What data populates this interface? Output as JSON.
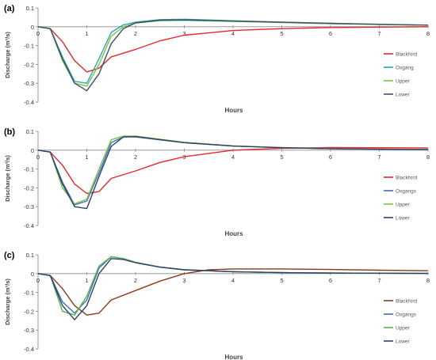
{
  "chart_data": [
    {
      "type": "line",
      "panel_label": "(a)",
      "xlabel": "Hours",
      "ylabel": "Discharge (m³/s)",
      "xlim": [
        0,
        8
      ],
      "ylim": [
        -0.4,
        0.1
      ],
      "x_ticks": [
        "0",
        "1",
        "2",
        "3",
        "4",
        "5",
        "6",
        "7",
        "8"
      ],
      "y_ticks": [
        "0.1",
        "0",
        "-0.1",
        "-0.2",
        "-0.3",
        "-0.4"
      ],
      "grid": false,
      "legend_position": "right",
      "series": [
        {
          "name": "Blackford",
          "color": "#e3262b",
          "x": [
            0,
            0.25,
            0.5,
            0.75,
            1.0,
            1.25,
            1.5,
            2.0,
            2.5,
            3.0,
            4.0,
            5.0,
            6.0,
            7.0,
            8.0
          ],
          "y": [
            0,
            -0.01,
            -0.08,
            -0.18,
            -0.24,
            -0.22,
            -0.16,
            -0.12,
            -0.075,
            -0.045,
            -0.02,
            -0.01,
            -0.004,
            -0.002,
            0
          ]
        },
        {
          "name": "Oxgang",
          "color": "#2aa7b8",
          "x": [
            0,
            0.25,
            0.5,
            0.75,
            1.0,
            1.25,
            1.5,
            1.75,
            2.0,
            2.5,
            3.0,
            4.0,
            5.0,
            6.0,
            7.0,
            8.0
          ],
          "y": [
            0,
            -0.01,
            -0.16,
            -0.29,
            -0.3,
            -0.17,
            -0.03,
            0.01,
            0.025,
            0.038,
            0.04,
            0.032,
            0.025,
            0.018,
            0.012,
            0.008
          ]
        },
        {
          "name": "Upper",
          "color": "#7ec242",
          "x": [
            0,
            0.25,
            0.5,
            0.75,
            1.0,
            1.25,
            1.5,
            1.75,
            2.0,
            2.5,
            3.0,
            4.0,
            5.0,
            6.0,
            7.0,
            8.0
          ],
          "y": [
            0,
            -0.01,
            -0.18,
            -0.3,
            -0.315,
            -0.2,
            -0.05,
            0.0,
            0.02,
            0.032,
            0.034,
            0.028,
            0.022,
            0.016,
            0.012,
            0.008
          ]
        },
        {
          "name": "Lower",
          "color": "#3d5068",
          "x": [
            0,
            0.25,
            0.5,
            0.75,
            1.0,
            1.25,
            1.5,
            1.75,
            2.0,
            2.5,
            3.0,
            4.0,
            5.0,
            6.0,
            7.0,
            8.0
          ],
          "y": [
            0,
            -0.01,
            -0.17,
            -0.3,
            -0.34,
            -0.25,
            -0.09,
            -0.01,
            0.02,
            0.035,
            0.036,
            0.03,
            0.024,
            0.018,
            0.013,
            0.009
          ]
        }
      ]
    },
    {
      "type": "line",
      "panel_label": "(b)",
      "xlabel": "Hours",
      "ylabel": "Discharge (m³/s)",
      "xlim": [
        0,
        8
      ],
      "ylim": [
        -0.4,
        0.1
      ],
      "x_ticks": [
        "0",
        "1",
        "2",
        "3",
        "4",
        "5",
        "6",
        "7",
        "8"
      ],
      "y_ticks": [
        "0.1",
        "0",
        "-0.1",
        "-0.2",
        "-0.3",
        "-0.4"
      ],
      "grid": false,
      "legend_position": "right",
      "series": [
        {
          "name": "Blackford",
          "color": "#e3262b",
          "x": [
            0,
            0.25,
            0.5,
            0.75,
            1.0,
            1.25,
            1.5,
            2.0,
            2.5,
            3.0,
            4.0,
            5.0,
            6.0,
            7.0,
            8.0
          ],
          "y": [
            0,
            -0.01,
            -0.08,
            -0.18,
            -0.23,
            -0.22,
            -0.15,
            -0.11,
            -0.065,
            -0.035,
            0.0,
            0.01,
            0.014,
            0.013,
            0.012
          ]
        },
        {
          "name": "Oxgangs",
          "color": "#3b73b8",
          "x": [
            0,
            0.25,
            0.5,
            0.75,
            1.0,
            1.25,
            1.5,
            1.75,
            2.0,
            2.5,
            3.0,
            4.0,
            5.0,
            6.0,
            7.0,
            8.0
          ],
          "y": [
            0,
            -0.01,
            -0.17,
            -0.29,
            -0.27,
            -0.12,
            0.04,
            0.07,
            0.07,
            0.055,
            0.04,
            0.022,
            0.013,
            0.008,
            0.005,
            0.003
          ]
        },
        {
          "name": "Upper",
          "color": "#7ec242",
          "x": [
            0,
            0.25,
            0.5,
            0.75,
            1.0,
            1.25,
            1.5,
            1.75,
            2.0,
            2.5,
            3.0,
            4.0,
            5.0,
            6.0,
            7.0,
            8.0
          ],
          "y": [
            0,
            -0.01,
            -0.2,
            -0.285,
            -0.26,
            -0.1,
            0.055,
            0.075,
            0.075,
            0.058,
            0.042,
            0.023,
            0.014,
            0.009,
            0.006,
            0.004
          ]
        },
        {
          "name": "Lower",
          "color": "#2f3f6a",
          "x": [
            0,
            0.25,
            0.5,
            0.75,
            1.0,
            1.25,
            1.5,
            1.75,
            2.0,
            2.5,
            3.0,
            4.0,
            5.0,
            6.0,
            7.0,
            8.0
          ],
          "y": [
            0,
            -0.01,
            -0.18,
            -0.3,
            -0.31,
            -0.14,
            0.02,
            0.07,
            0.072,
            0.056,
            0.04,
            0.022,
            0.013,
            0.008,
            0.005,
            0.003
          ]
        }
      ]
    },
    {
      "type": "line",
      "panel_label": "(c)",
      "xlabel": "Hours",
      "ylabel": "Discharge (m³/s)",
      "xlim": [
        0,
        8
      ],
      "ylim": [
        -0.4,
        0.1
      ],
      "x_ticks": [
        "0",
        "1",
        "2",
        "3",
        "4",
        "5",
        "6",
        "7",
        "8"
      ],
      "y_ticks": [
        "0.1",
        "0",
        "-0.1",
        "-0.2",
        "-0.3",
        "-0.4"
      ],
      "grid": false,
      "legend_position": "right",
      "series": [
        {
          "name": "Blackford",
          "color": "#8b3a16",
          "x": [
            0,
            0.25,
            0.5,
            0.75,
            1.0,
            1.25,
            1.5,
            2.0,
            2.5,
            3.0,
            3.5,
            4.0,
            5.0,
            6.0,
            7.0,
            8.0
          ],
          "y": [
            0,
            -0.01,
            -0.08,
            -0.17,
            -0.22,
            -0.21,
            -0.14,
            -0.09,
            -0.04,
            0.0,
            0.02,
            0.025,
            0.025,
            0.022,
            0.018,
            0.015
          ]
        },
        {
          "name": "Oxgangs",
          "color": "#3b73b8",
          "x": [
            0,
            0.25,
            0.5,
            0.75,
            1.0,
            1.25,
            1.5,
            1.75,
            2.0,
            2.5,
            3.0,
            4.0,
            5.0,
            6.0,
            7.0,
            8.0
          ],
          "y": [
            0,
            -0.01,
            -0.15,
            -0.21,
            -0.14,
            0.03,
            0.09,
            0.08,
            0.06,
            0.035,
            0.02,
            0.01,
            0.005,
            0.003,
            0.002,
            0.001
          ]
        },
        {
          "name": "Upper",
          "color": "#56b34a",
          "x": [
            0,
            0.25,
            0.5,
            0.75,
            1.0,
            1.25,
            1.5,
            1.75,
            2.0,
            2.5,
            3.0,
            4.0,
            5.0,
            6.0,
            7.0,
            8.0
          ],
          "y": [
            0,
            -0.01,
            -0.2,
            -0.22,
            -0.12,
            0.04,
            0.09,
            0.08,
            0.06,
            0.035,
            0.02,
            0.01,
            0.005,
            0.003,
            0.002,
            0.001
          ]
        },
        {
          "name": "Lower",
          "color": "#2f3f6a",
          "x": [
            0,
            0.25,
            0.5,
            0.75,
            1.0,
            1.25,
            1.5,
            1.75,
            2.0,
            2.5,
            3.0,
            4.0,
            5.0,
            6.0,
            7.0,
            8.0
          ],
          "y": [
            0,
            -0.01,
            -0.17,
            -0.245,
            -0.17,
            0.0,
            0.08,
            0.075,
            0.058,
            0.034,
            0.02,
            0.01,
            0.005,
            0.003,
            0.002,
            0.001
          ]
        }
      ]
    }
  ]
}
